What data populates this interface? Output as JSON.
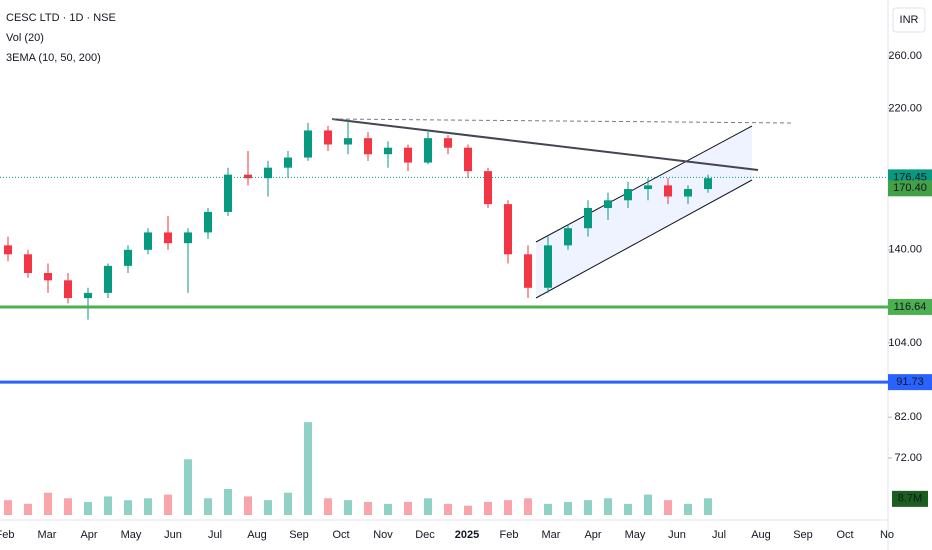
{
  "chart_data": {
    "type": "candlestick",
    "title": "CESC LTD · 1D · NSE",
    "indicators": [
      "Vol (20)",
      "3EMA (10, 50, 200)"
    ],
    "currency": "INR",
    "log_scale": true,
    "ylim": [
      60,
      311
    ],
    "yticks": [
      {
        "value": 260,
        "label": "260.00"
      },
      {
        "value": 220,
        "label": "220.00"
      },
      {
        "value": 140,
        "label": "140.00"
      },
      {
        "value": 104,
        "label": "104.00"
      },
      {
        "value": 82,
        "label": "82.00"
      },
      {
        "value": 72,
        "label": "72.00"
      }
    ],
    "x_labels": [
      "Feb",
      "Mar",
      "Apr",
      "May",
      "Jun",
      "Jul",
      "Aug",
      "Sep",
      "Oct",
      "Nov",
      "Dec",
      "2025",
      "Feb",
      "Mar",
      "Apr",
      "May",
      "Jun",
      "Jul",
      "Aug",
      "Sep",
      "Oct",
      "No"
    ],
    "up_color": "#089981",
    "down_color": "#f23645",
    "open": [
      142,
      138,
      130,
      127,
      120,
      122,
      133,
      140,
      148,
      143,
      148,
      158,
      178,
      176,
      182,
      188,
      205,
      196,
      200,
      190,
      194,
      185,
      200,
      194,
      180,
      162,
      138,
      124,
      142,
      150,
      160,
      164,
      170,
      172,
      166,
      170
    ],
    "high": [
      146,
      140,
      134,
      130,
      124,
      134,
      142,
      150,
      156,
      150,
      160,
      182,
      192,
      186,
      192,
      210,
      208,
      212,
      204,
      198,
      196,
      204,
      202,
      196,
      182,
      164,
      142,
      146,
      152,
      164,
      168,
      174,
      176,
      176,
      172,
      178
    ],
    "low": [
      135,
      128,
      122,
      118,
      112,
      120,
      130,
      138,
      140,
      122,
      145,
      156,
      172,
      166,
      176,
      186,
      192,
      190,
      186,
      182,
      180,
      184,
      190,
      176,
      160,
      134,
      120,
      122,
      140,
      146,
      154,
      160,
      164,
      162,
      162,
      168
    ],
    "close": [
      138,
      130,
      127,
      120,
      122,
      133,
      140,
      148,
      143,
      148,
      158,
      178,
      176,
      182,
      188,
      205,
      196,
      200,
      190,
      194,
      185,
      200,
      194,
      180,
      162,
      138,
      124,
      142,
      150,
      160,
      164,
      170,
      172,
      166,
      170,
      176
    ],
    "volume": [
      8,
      6,
      12,
      9,
      7,
      10,
      8,
      9,
      11,
      30,
      9,
      14,
      10,
      8,
      12,
      50,
      9,
      8,
      7,
      6,
      7,
      9,
      6,
      5,
      7,
      8,
      9,
      6,
      7,
      8,
      9,
      6,
      11,
      8,
      6,
      9
    ],
    "vlim": [
      0,
      70
    ],
    "volume_label": {
      "value": 8.7,
      "label": "8.7M"
    },
    "levels": [
      {
        "value": 116.64,
        "color": "#4caf50"
      },
      {
        "value": 91.73,
        "color": "#2962ff"
      }
    ],
    "price_labels": [
      {
        "value": 176.45,
        "color": "#089981"
      },
      {
        "value": 170.4,
        "label": "170.40",
        "color": "#43a047"
      }
    ]
  }
}
